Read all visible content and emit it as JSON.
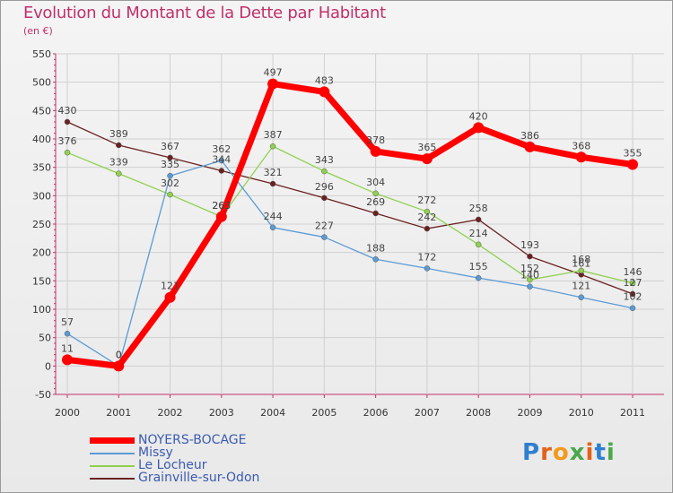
{
  "title": "Evolution du Montant de la Dette par Habitant",
  "subtitle": "(en €)",
  "logo": {
    "letters": [
      "P",
      "r",
      "o",
      "x",
      "i",
      "t",
      "i"
    ],
    "colors": [
      "#2f7fd0",
      "#e2621b",
      "#f39a1b",
      "#4aa84a",
      "#e2621b",
      "#2f7fd0",
      "#4aa84a"
    ]
  },
  "chart_data": {
    "type": "line",
    "title": "Evolution du Montant de la Dette par Habitant",
    "subtitle": "(en €)",
    "x": [
      "2000",
      "2001",
      "2002",
      "2003",
      "2004",
      "2005",
      "2006",
      "2007",
      "2008",
      "2009",
      "2010",
      "2011"
    ],
    "ylim": [
      -50,
      550
    ],
    "yticks": [
      -50,
      0,
      50,
      100,
      150,
      200,
      250,
      300,
      350,
      400,
      450,
      500,
      550
    ],
    "grid": true,
    "legend_position": "bottom-left",
    "series": [
      {
        "name": "NOYERS-BOCAGE",
        "color": "#ff0000",
        "values": [
          11,
          0,
          121,
          263,
          497,
          483,
          378,
          365,
          420,
          386,
          368,
          355
        ]
      },
      {
        "name": "Missy",
        "color": "#5b9bd5",
        "values": [
          57,
          0,
          335,
          362,
          244,
          227,
          188,
          172,
          155,
          140,
          121,
          102
        ]
      },
      {
        "name": "Le Locheur",
        "color": "#8fd14f",
        "values": [
          376,
          339,
          302,
          263,
          387,
          343,
          304,
          272,
          214,
          152,
          168,
          146
        ]
      },
      {
        "name": "Grainville-sur-Odon",
        "color": "#6b2020",
        "values": [
          430,
          389,
          367,
          344,
          321,
          296,
          269,
          242,
          258,
          193,
          161,
          127
        ]
      }
    ],
    "data_labels": [
      {
        "series": "NOYERS-BOCAGE",
        "text": [
          "11",
          "0",
          "121",
          "263",
          "497",
          "483",
          "378",
          "365",
          "420",
          "386",
          "368",
          "355"
        ]
      },
      {
        "series": "Missy",
        "text": [
          "57",
          "0",
          "335",
          "362",
          "244",
          "227",
          "188",
          "172",
          "155",
          "140",
          "121",
          "102"
        ]
      },
      {
        "series": "Le Locheur",
        "text": [
          "376",
          "339",
          "302",
          "263",
          "387",
          "343",
          "304",
          "272",
          "214",
          "152",
          "168",
          "146"
        ]
      },
      {
        "series": "Grainville-sur-Odon",
        "text": [
          "430",
          "389",
          "367",
          "344",
          "321",
          "296",
          "269",
          "242",
          "258",
          "193",
          "161",
          "127"
        ]
      }
    ]
  }
}
